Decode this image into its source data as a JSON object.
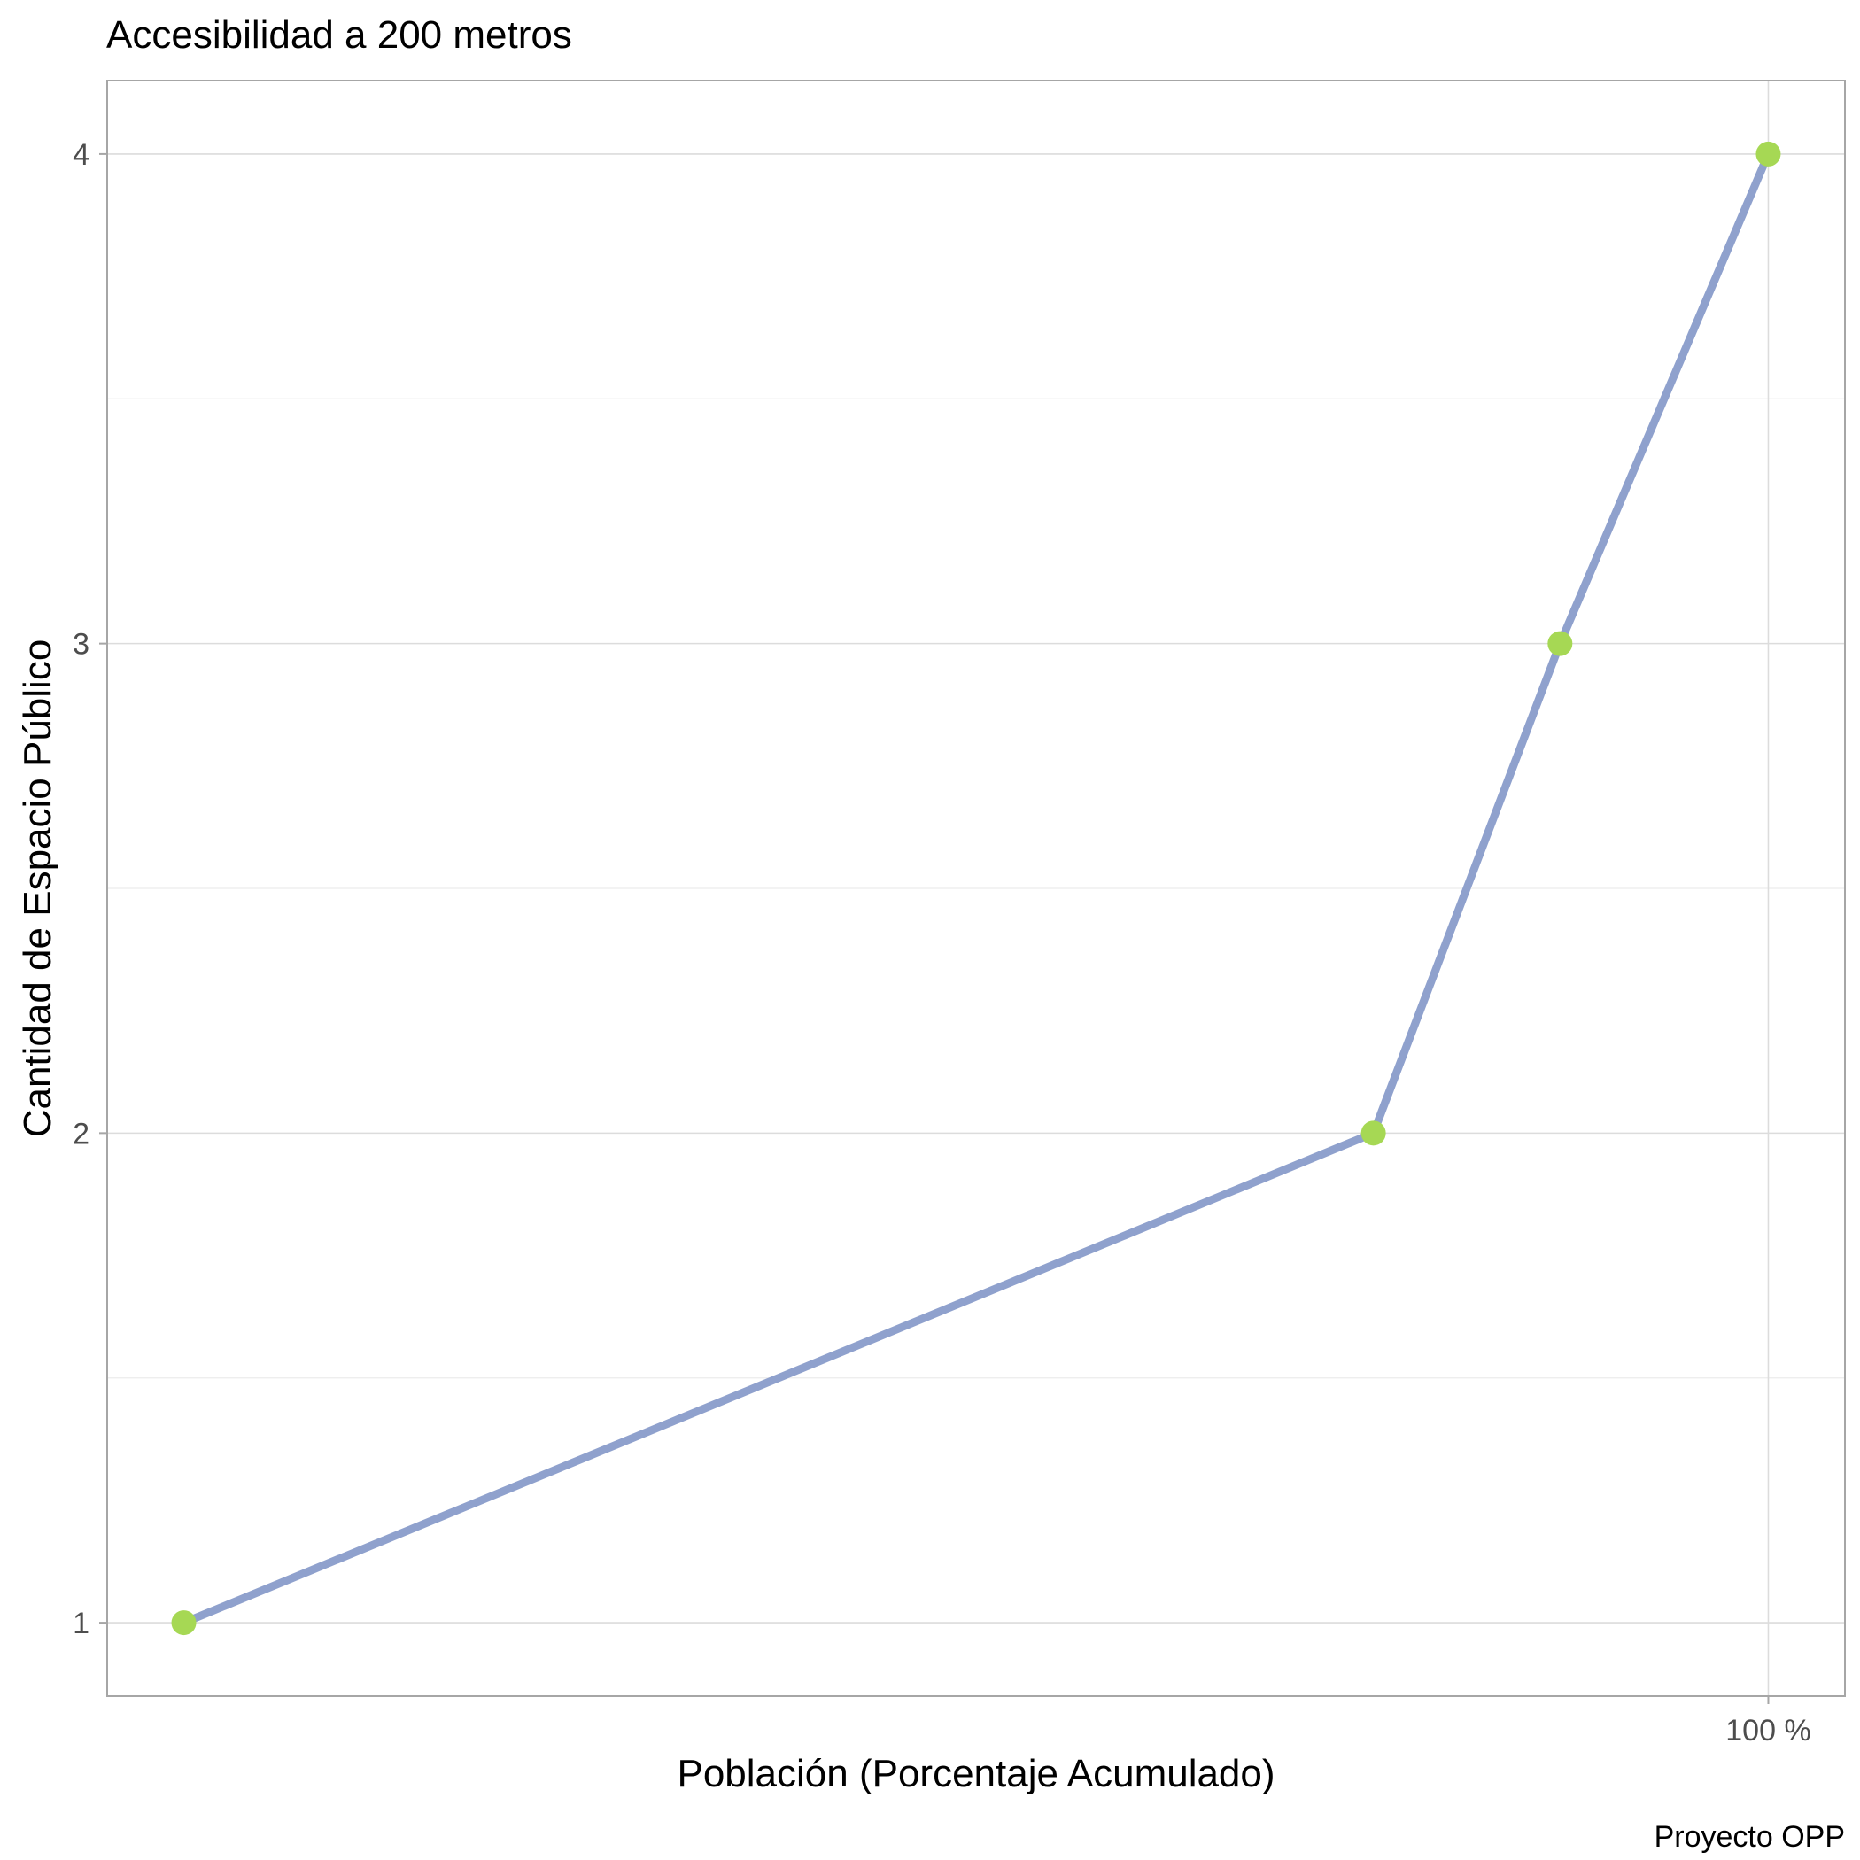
{
  "chart_data": {
    "type": "line",
    "title": "Accesibilidad a 200 metros",
    "xlabel": "Población (Porcentaje Acumulado)",
    "ylabel": "Cantidad de Espacio Público",
    "caption": "Proyecto OPP",
    "x": [
      4.9,
      76.3,
      87.5,
      100
    ],
    "y": [
      1,
      2,
      3,
      4
    ],
    "xlim": [
      0.3,
      104.6
    ],
    "ylim": [
      0.85,
      4.15
    ],
    "x_ticks": [
      {
        "value": 100,
        "label": "100 %"
      }
    ],
    "y_ticks": [
      {
        "value": 1,
        "label": "1"
      },
      {
        "value": 2,
        "label": "2"
      },
      {
        "value": 3,
        "label": "3"
      },
      {
        "value": 4,
        "label": "4"
      }
    ],
    "y_minor_ticks": [
      1.5,
      2.5,
      3.5
    ],
    "grid": true,
    "legend": "none",
    "line_color": "#8fa1cd",
    "point_color": "#a6d854"
  }
}
